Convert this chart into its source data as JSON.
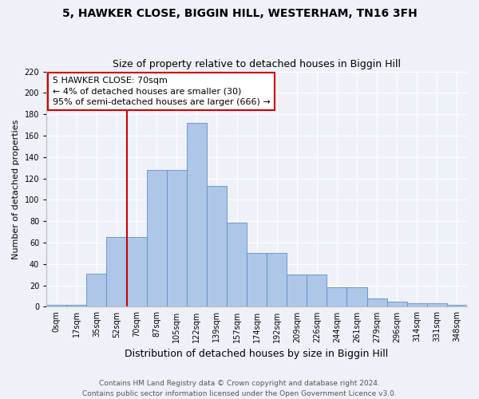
{
  "title": "5, HAWKER CLOSE, BIGGIN HILL, WESTERHAM, TN16 3FH",
  "subtitle": "Size of property relative to detached houses in Biggin Hill",
  "xlabel": "Distribution of detached houses by size in Biggin Hill",
  "ylabel": "Number of detached properties",
  "footer_line1": "Contains HM Land Registry data © Crown copyright and database right 2024.",
  "footer_line2": "Contains public sector information licensed under the Open Government Licence v3.0.",
  "bin_labels": [
    "0sqm",
    "17sqm",
    "35sqm",
    "52sqm",
    "70sqm",
    "87sqm",
    "105sqm",
    "122sqm",
    "139sqm",
    "157sqm",
    "174sqm",
    "192sqm",
    "209sqm",
    "226sqm",
    "244sqm",
    "261sqm",
    "279sqm",
    "296sqm",
    "314sqm",
    "331sqm",
    "348sqm"
  ],
  "bar_values": [
    2,
    2,
    31,
    65,
    65,
    128,
    128,
    172,
    113,
    79,
    50,
    50,
    30,
    30,
    18,
    18,
    8,
    5,
    3,
    3,
    2
  ],
  "bar_color": "#aec6e8",
  "bar_edge_color": "#5b8fc9",
  "annotation_text": "5 HAWKER CLOSE: 70sqm\n← 4% of detached houses are smaller (30)\n95% of semi-detached houses are larger (666) →",
  "annotation_box_color": "#ffffff",
  "annotation_box_edge": "#cc0000",
  "vline_color": "#cc0000",
  "vline_index": 4,
  "ylim": [
    0,
    220
  ],
  "yticks": [
    0,
    20,
    40,
    60,
    80,
    100,
    120,
    140,
    160,
    180,
    200,
    220
  ],
  "background_color": "#eef2f8",
  "plot_bg_color": "#eef2f8",
  "grid_color": "#ffffff",
  "title_fontsize": 10,
  "subtitle_fontsize": 9,
  "xlabel_fontsize": 9,
  "ylabel_fontsize": 8,
  "tick_fontsize": 7,
  "footer_fontsize": 6.5,
  "annotation_fontsize": 8
}
